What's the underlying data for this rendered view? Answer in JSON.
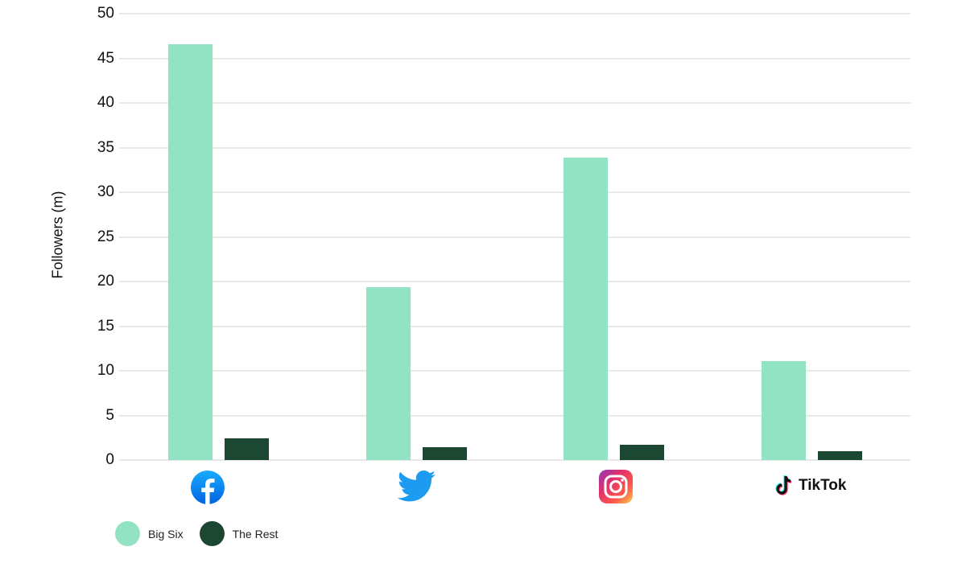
{
  "chart_data": {
    "type": "bar",
    "title": "",
    "xlabel": "",
    "ylabel": "Followers (m)",
    "ylim": [
      0,
      50
    ],
    "yticks": [
      0,
      5,
      10,
      15,
      20,
      25,
      30,
      35,
      40,
      45,
      50
    ],
    "grid": true,
    "legend_position": "bottom-left",
    "categories": [
      "Facebook",
      "Twitter",
      "Instagram",
      "TikTok"
    ],
    "series": [
      {
        "name": "Big Six",
        "color": "#92e3c3",
        "values": [
          46.6,
          19.4,
          33.9,
          11.1
        ]
      },
      {
        "name": "The Rest",
        "color": "#1b4733",
        "values": [
          2.4,
          1.4,
          1.7,
          1.0
        ]
      }
    ]
  },
  "axis": {
    "ylabel": "Followers (m)",
    "ticks": [
      "0",
      "5",
      "10",
      "15",
      "20",
      "25",
      "30",
      "35",
      "40",
      "45",
      "50"
    ]
  },
  "categories": [
    {
      "name": "Facebook",
      "icon": "facebook-icon"
    },
    {
      "name": "Twitter",
      "icon": "twitter-icon"
    },
    {
      "name": "Instagram",
      "icon": "instagram-icon"
    },
    {
      "name": "TikTok",
      "icon": "tiktok-icon",
      "label": "TikTok"
    }
  ],
  "legend": {
    "items": [
      {
        "label": "Big Six",
        "color": "#92e3c3"
      },
      {
        "label": "The Rest",
        "color": "#1b4733"
      }
    ]
  }
}
